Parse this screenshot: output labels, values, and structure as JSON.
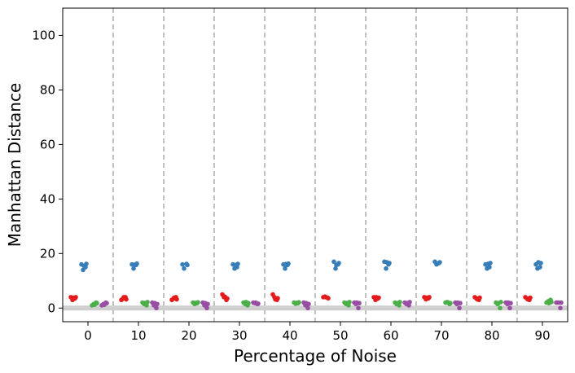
{
  "chart_data": {
    "type": "scatter",
    "style": "strip plot with jitter, grouped by noise percentage",
    "xlabel": "Percentage of Noise",
    "ylabel": "Manhattan Distance",
    "ylim": [
      -5,
      110
    ],
    "yticks": [
      0,
      20,
      40,
      60,
      80,
      100
    ],
    "categories": [
      "0",
      "10",
      "20",
      "30",
      "40",
      "50",
      "60",
      "70",
      "80",
      "90"
    ],
    "grid": false,
    "group_separators": "dashed vertical lines between categories",
    "baseline": "thick light-gray horizontal line at y = 0",
    "series": [
      {
        "color": "#e41a1c",
        "values": [
          [
            4,
            3.5,
            3,
            4,
            3.8
          ],
          [
            3,
            4,
            3.5,
            3.2,
            4
          ],
          [
            3,
            4,
            3.5,
            3.2,
            3.8
          ],
          [
            5,
            3,
            4,
            3.5,
            4.2
          ],
          [
            5,
            3,
            4,
            3.6,
            3.2
          ],
          [
            4,
            3.8,
            4.2,
            3.6,
            4
          ],
          [
            4,
            3.5,
            3,
            3.8,
            4
          ],
          [
            4,
            3.6,
            3.2,
            4,
            3.8
          ],
          [
            4,
            3,
            3.5,
            3.8,
            3.2
          ],
          [
            4,
            3,
            3.5,
            3.8,
            3.2
          ]
        ]
      },
      {
        "color": "#377eb8",
        "values": [
          [
            16,
            15,
            14,
            16.2,
            15.5
          ],
          [
            16,
            15.8,
            14.5,
            16.3,
            15.9
          ],
          [
            16,
            16.2,
            14.5,
            15.8
          ],
          [
            16,
            15,
            14.5,
            16.2,
            15.8
          ],
          [
            16,
            15.8,
            14.5,
            16.3,
            16.1
          ],
          [
            17,
            16,
            14.5,
            16.5,
            15.8
          ],
          [
            17,
            16,
            14.5,
            16.5,
            16.8
          ],
          [
            17,
            16.5,
            16,
            16.8,
            16.3
          ],
          [
            16,
            15,
            14.5,
            16.5,
            16.2
          ],
          [
            16,
            15,
            14.5,
            16.5,
            16.8
          ]
        ]
      },
      {
        "color": "#4daf4a",
        "values": [
          [
            1,
            2,
            1.5,
            1.8,
            1.2
          ],
          [
            2,
            1,
            1.5,
            2.2,
            1.8
          ],
          [
            2,
            1.8,
            1.5,
            2.1,
            1.9
          ],
          [
            2,
            1,
            1.5,
            1.8,
            2.2
          ],
          [
            2,
            1.8,
            1.6,
            2.1,
            1.9
          ],
          [
            2,
            1,
            1.5,
            2.2,
            1.8
          ],
          [
            2,
            1,
            1.5,
            2.2,
            1.8
          ],
          [
            2,
            1.5,
            2.2,
            1.8,
            2.1
          ],
          [
            2,
            0,
            1.5,
            2.2,
            1.8
          ],
          [
            2,
            3,
            2.5,
            2.2,
            1.8
          ]
        ]
      },
      {
        "color": "#984ea3",
        "values": [
          [
            1,
            2,
            1.5,
            1.8,
            1.2
          ],
          [
            2,
            0,
            1,
            1.5,
            1.8
          ],
          [
            2,
            0,
            1,
            1.5,
            1.8
          ],
          [
            2,
            1.5,
            1.8,
            1.6,
            2
          ],
          [
            2,
            0,
            1,
            1.5,
            1.8
          ],
          [
            2,
            0,
            1.5,
            1.8,
            2
          ],
          [
            2,
            1,
            1.5,
            2.2,
            1.8
          ],
          [
            2,
            0,
            1.5,
            1.8,
            2
          ],
          [
            2,
            0,
            1.5,
            1.8,
            2
          ],
          [
            2,
            0,
            2,
            2,
            2
          ]
        ]
      }
    ]
  }
}
